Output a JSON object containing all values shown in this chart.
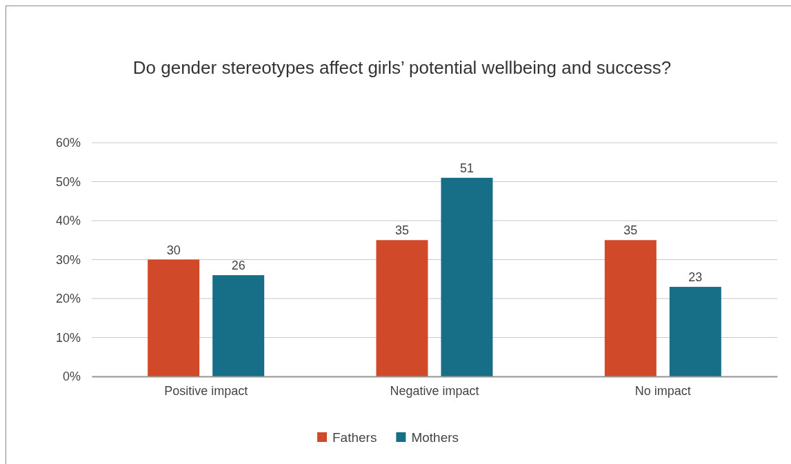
{
  "chart_data": {
    "type": "bar",
    "title": "Do gender stereotypes affect girls’ potential wellbeing and success?",
    "categories": [
      "Positive impact",
      "Negative impact",
      "No impact"
    ],
    "series": [
      {
        "name": "Fathers",
        "color": "#d04a29",
        "values": [
          30,
          35,
          35
        ]
      },
      {
        "name": "Mothers",
        "color": "#176e87",
        "values": [
          26,
          51,
          23
        ]
      }
    ],
    "ylim": [
      0,
      60
    ],
    "yticks": [
      {
        "value": 0,
        "label": "0%"
      },
      {
        "value": 10,
        "label": "10%"
      },
      {
        "value": 20,
        "label": "20%"
      },
      {
        "value": 30,
        "label": "30%"
      },
      {
        "value": 40,
        "label": "40%"
      },
      {
        "value": 50,
        "label": "50%"
      },
      {
        "value": 60,
        "label": "60%"
      }
    ],
    "grid": "y",
    "legend": "bottom",
    "data_labels": true
  }
}
